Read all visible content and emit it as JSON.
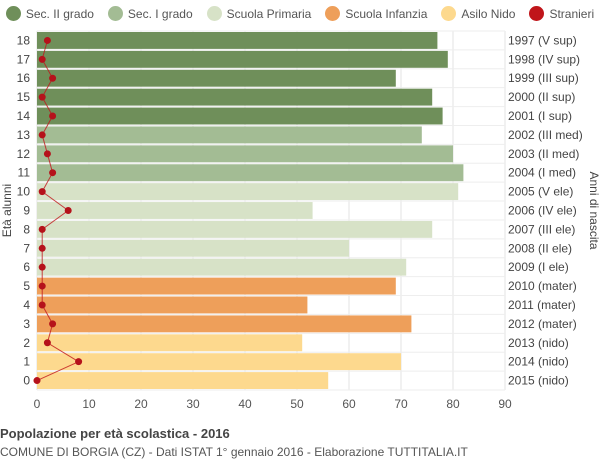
{
  "chart_data": {
    "type": "bar",
    "orientation": "horizontal",
    "title": "Popolazione per età scolastica - 2016",
    "subtitle": "COMUNE DI BORGIA (CZ) - Dati ISTAT 1° gennaio 2016 - Elaborazione TUTTITALIA.IT",
    "ylabel_left": "Età alunni",
    "ylabel_right": "Anni di nascita",
    "xlim": [
      0,
      90
    ],
    "xticks": [
      0,
      10,
      20,
      30,
      40,
      50,
      60,
      70,
      80,
      90
    ],
    "grid": true,
    "legend_position": "top",
    "legend": [
      {
        "key": "sec2",
        "label": "Sec. II grado",
        "color": "#6f8f5a"
      },
      {
        "key": "sec1",
        "label": "Sec. I grado",
        "color": "#a3bc94"
      },
      {
        "key": "prim",
        "label": "Scuola Primaria",
        "color": "#d7e2c7"
      },
      {
        "key": "inf",
        "label": "Scuola Infanzia",
        "color": "#ee9f5a"
      },
      {
        "key": "nido",
        "label": "Asilo Nido",
        "color": "#fdd98e"
      },
      {
        "key": "stranieri",
        "label": "Stranieri",
        "color": "#c0151a"
      }
    ],
    "rows": [
      {
        "age": "18",
        "birth": "1997 (V sup)",
        "value": 77,
        "stranieri": 2,
        "group": "sec2"
      },
      {
        "age": "17",
        "birth": "1998 (IV sup)",
        "value": 79,
        "stranieri": 1,
        "group": "sec2"
      },
      {
        "age": "16",
        "birth": "1999 (III sup)",
        "value": 69,
        "stranieri": 3,
        "group": "sec2"
      },
      {
        "age": "15",
        "birth": "2000 (II sup)",
        "value": 76,
        "stranieri": 1,
        "group": "sec2"
      },
      {
        "age": "14",
        "birth": "2001 (I sup)",
        "value": 78,
        "stranieri": 3,
        "group": "sec2"
      },
      {
        "age": "13",
        "birth": "2002 (III med)",
        "value": 74,
        "stranieri": 1,
        "group": "sec1"
      },
      {
        "age": "12",
        "birth": "2003 (II med)",
        "value": 80,
        "stranieri": 2,
        "group": "sec1"
      },
      {
        "age": "11",
        "birth": "2004 (I med)",
        "value": 82,
        "stranieri": 3,
        "group": "sec1"
      },
      {
        "age": "10",
        "birth": "2005 (V ele)",
        "value": 81,
        "stranieri": 1,
        "group": "prim"
      },
      {
        "age": "9",
        "birth": "2006 (IV ele)",
        "value": 53,
        "stranieri": 6,
        "group": "prim"
      },
      {
        "age": "8",
        "birth": "2007 (III ele)",
        "value": 76,
        "stranieri": 1,
        "group": "prim"
      },
      {
        "age": "7",
        "birth": "2008 (II ele)",
        "value": 60,
        "stranieri": 1,
        "group": "prim"
      },
      {
        "age": "6",
        "birth": "2009 (I ele)",
        "value": 71,
        "stranieri": 1,
        "group": "prim"
      },
      {
        "age": "5",
        "birth": "2010 (mater)",
        "value": 69,
        "stranieri": 1,
        "group": "inf"
      },
      {
        "age": "4",
        "birth": "2011 (mater)",
        "value": 52,
        "stranieri": 1,
        "group": "inf"
      },
      {
        "age": "3",
        "birth": "2012 (mater)",
        "value": 72,
        "stranieri": 3,
        "group": "inf"
      },
      {
        "age": "2",
        "birth": "2013 (nido)",
        "value": 51,
        "stranieri": 2,
        "group": "nido"
      },
      {
        "age": "1",
        "birth": "2014 (nido)",
        "value": 70,
        "stranieri": 8,
        "group": "nido"
      },
      {
        "age": "0",
        "birth": "2015 (nido)",
        "value": 56,
        "stranieri": 0,
        "group": "nido"
      }
    ]
  }
}
